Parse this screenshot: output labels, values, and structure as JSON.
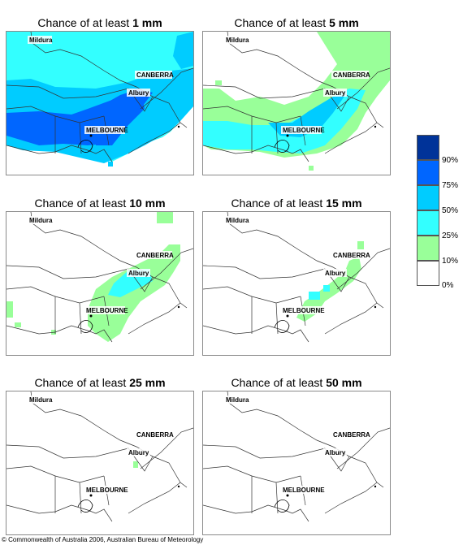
{
  "panels": [
    {
      "title_prefix": "Chance of at least ",
      "threshold": "1 mm"
    },
    {
      "title_prefix": "Chance of at least ",
      "threshold": "5 mm"
    },
    {
      "title_prefix": "Chance of at least ",
      "threshold": "10 mm"
    },
    {
      "title_prefix": "Chance of at least ",
      "threshold": "15 mm"
    },
    {
      "title_prefix": "Chance of at least ",
      "threshold": "25 mm"
    },
    {
      "title_prefix": "Chance of at least ",
      "threshold": "50 mm"
    }
  ],
  "places": {
    "mildura": "Mildura",
    "canberra": "CANBERRA",
    "albury": "Albury",
    "melbourne": "MELBOURNE"
  },
  "legend": {
    "ticks": [
      "90%",
      "75%",
      "50%",
      "25%",
      "10%",
      "0%"
    ],
    "colors": [
      "#003399",
      "#0066ff",
      "#00ccff",
      "#33ffff",
      "#99ff99",
      "#ffffff"
    ]
  },
  "copyright": "© Commonwealth of Australia 2006, Australian Bureau of Meteorology"
}
